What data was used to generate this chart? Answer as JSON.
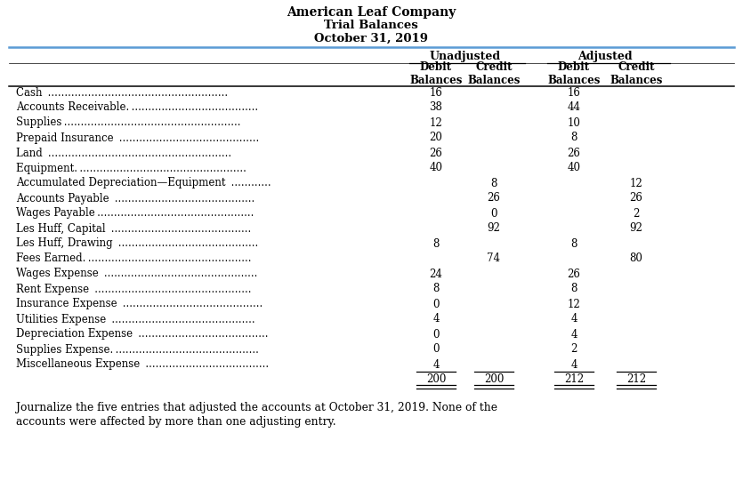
{
  "title_line1": "American Leaf Company",
  "title_line2": "Trial Balances",
  "title_line3": "October 31, 2019",
  "accounts": [
    "Cash  ......................................................",
    "Accounts Receivable. ......................................",
    "Supplies .....................................................",
    "Prepaid Insurance  ..........................................",
    "Land  .......................................................",
    "Equipment. ..................................................",
    "Accumulated Depreciation—Equipment  ............",
    "Accounts Payable  ..........................................",
    "Wages Payable ...............................................",
    "Les Huff, Capital  ..........................................",
    "Les Huff, Drawing  ..........................................",
    "Fees Earned. .................................................",
    "Wages Expense  ..............................................",
    "Rent Expense  ...............................................",
    "Insurance Expense  ..........................................",
    "Utilities Expense  ...........................................",
    "Depreciation Expense  .......................................",
    "Supplies Expense. ...........................................",
    "Miscellaneous Expense  ....................................."
  ],
  "data": [
    [
      16,
      "",
      16,
      ""
    ],
    [
      38,
      "",
      44,
      ""
    ],
    [
      12,
      "",
      10,
      ""
    ],
    [
      20,
      "",
      8,
      ""
    ],
    [
      26,
      "",
      26,
      ""
    ],
    [
      40,
      "",
      40,
      ""
    ],
    [
      "",
      8,
      "",
      12
    ],
    [
      "",
      26,
      "",
      26
    ],
    [
      "",
      0,
      "",
      2
    ],
    [
      "",
      92,
      "",
      92
    ],
    [
      8,
      "",
      8,
      ""
    ],
    [
      "",
      74,
      "",
      80
    ],
    [
      24,
      "",
      26,
      ""
    ],
    [
      8,
      "",
      8,
      ""
    ],
    [
      0,
      "",
      12,
      ""
    ],
    [
      4,
      "",
      4,
      ""
    ],
    [
      0,
      "",
      4,
      ""
    ],
    [
      0,
      "",
      2,
      ""
    ],
    [
      4,
      "",
      4,
      ""
    ]
  ],
  "totals": [
    200,
    200,
    212,
    212
  ],
  "footer": "Journalize the five entries that adjusted the accounts at October 31, 2019. None of the accounts were affected by more than one adjusting entry.",
  "bg_color": "#ffffff",
  "text_color": "#000000",
  "header_line_color": "#5b9bd5"
}
